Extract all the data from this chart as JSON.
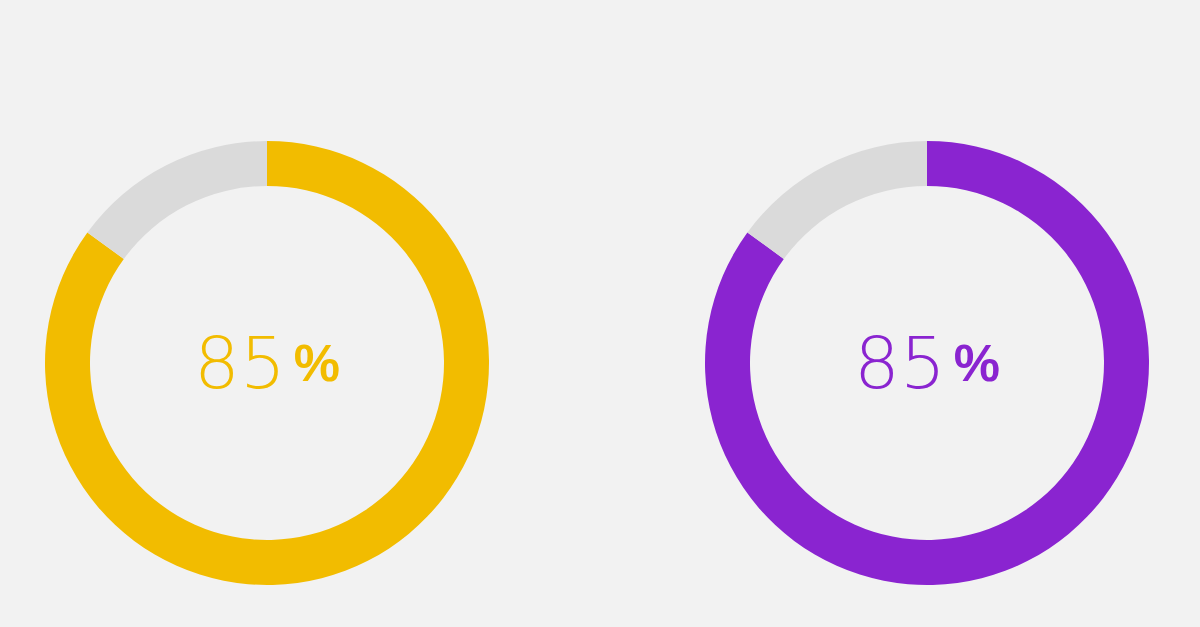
{
  "chart_data": [
    {
      "type": "donut",
      "categories": [
        null,
        null
      ],
      "values": [
        85,
        15
      ],
      "colors": [
        "#f2bc00",
        "#dadada"
      ],
      "value_labels": [
        "85%",
        null
      ]
    },
    {
      "type": "donut",
      "categories": [
        null,
        null
      ],
      "values": [
        85,
        15
      ],
      "colors": [
        "#8a24d0",
        "#dadada"
      ],
      "value_labels": [
        "85%",
        null
      ]
    }
  ]
}
